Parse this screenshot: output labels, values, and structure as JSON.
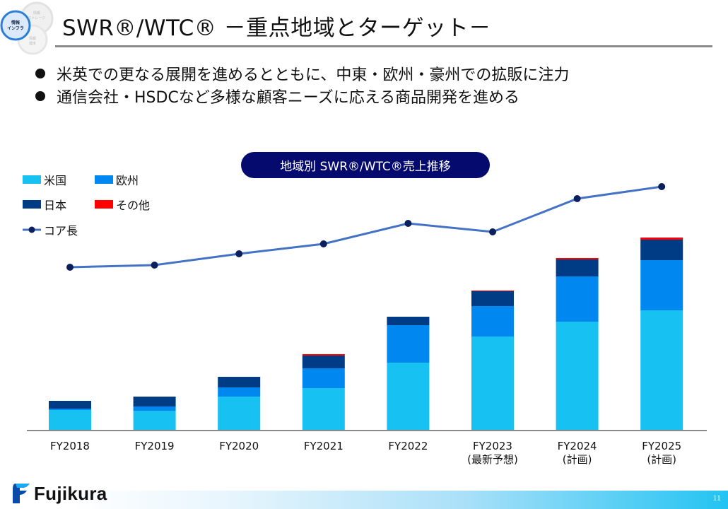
{
  "header": {
    "title": "SWR®/WTC® －重点地域とターゲット－",
    "logo_labels": [
      "情報インフラ",
      "情報ストレージ",
      "情報端末"
    ]
  },
  "bullets": [
    "米英での更なる展開を進めるとともに、中東・欧州・豪州での拡販に注力",
    "通信会社・HSDCなど多様な顧客ニーズに応える商品開発を進める"
  ],
  "chart_title_pill": "地域別 SWR®/WTC®売上推移",
  "colors": {
    "us": "#17c1f2",
    "europe": "#0088f0",
    "japan": "#003c85",
    "other": "#ff0000",
    "line": "#4472c4",
    "marker": "#0b1f5c",
    "pill": "#050a6e"
  },
  "chart_data": {
    "type": "bar",
    "stacked": true,
    "title": "地域別 SWR®/WTC®売上推移",
    "xlabel": "",
    "ylabel": "",
    "note": "No y-axis shown; values are relative units estimated from bar heights (0 = baseline).",
    "categories": [
      "FY2018",
      "FY2019",
      "FY2020",
      "FY2021",
      "FY2022",
      "FY2023",
      "FY2024",
      "FY2025"
    ],
    "category_sublabels": [
      "",
      "",
      "",
      "",
      "",
      "(最新予想)",
      "(計画)",
      "(計画)"
    ],
    "ylim": [
      0,
      300
    ],
    "grid": false,
    "legend_position": "top-left",
    "series": [
      {
        "name": "米国",
        "key": "us",
        "values": [
          29,
          28,
          48,
          60,
          96,
          133,
          154,
          170
        ]
      },
      {
        "name": "欧州",
        "key": "europe",
        "values": [
          2,
          6,
          13,
          28,
          53,
          43,
          64,
          71
        ]
      },
      {
        "name": "日本",
        "key": "japan",
        "values": [
          11,
          14,
          15,
          18,
          12,
          21,
          24,
          29
        ]
      },
      {
        "name": "その他",
        "key": "other",
        "values": [
          0,
          0,
          0,
          2,
          0,
          1,
          2,
          3
        ]
      }
    ],
    "line_series": {
      "name": "コア長",
      "note": "relative units, secondary scale not shown",
      "values": [
        231,
        234,
        250,
        264,
        293,
        281,
        328,
        345
      ],
      "ylim": [
        0,
        609
      ]
    }
  },
  "footer": {
    "brand": "Fujikura",
    "page_number": "11"
  }
}
